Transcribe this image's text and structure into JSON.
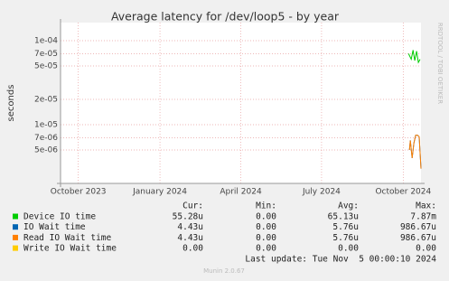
{
  "chart_data": {
    "type": "line",
    "title": "Average latency for /dev/loop5 - by year",
    "ylabel": "seconds",
    "side_note": "RRDTOOL / TOBI OETIKER",
    "log_y": true,
    "grid": true,
    "ylim": [
      2e-06,
      0.000164
    ],
    "yticks": [
      {
        "value": 0.0001,
        "label": "1e-04"
      },
      {
        "value": 7e-05,
        "label": "7e-05"
      },
      {
        "value": 5e-05,
        "label": "5e-05"
      },
      {
        "value": 2e-05,
        "label": "2e-05"
      },
      {
        "value": 1e-05,
        "label": "1e-05"
      },
      {
        "value": 7e-06,
        "label": "7e-06"
      },
      {
        "value": 5e-06,
        "label": "5e-06"
      }
    ],
    "xlim": [
      "2023-09-11",
      "2024-10-21"
    ],
    "xticks": [
      {
        "value": "2023-10",
        "label": "October 2023"
      },
      {
        "value": "2024-01",
        "label": "January 2024"
      },
      {
        "value": "2024-04",
        "label": "April 2024"
      },
      {
        "value": "2024-07",
        "label": "July 2024"
      },
      {
        "value": "2024-10",
        "label": "October 2024"
      }
    ],
    "legend_headers": [
      "Cur:",
      "Min:",
      "Avg:",
      "Max:"
    ],
    "series": [
      {
        "name": "Device IO time",
        "color": "#00cc00",
        "x": [
          "2024-10-07",
          "2024-10-10",
          "2024-10-12",
          "2024-10-14",
          "2024-10-16",
          "2024-10-18",
          "2024-10-20"
        ],
        "values": [
          7e-05,
          6e-05,
          7.7e-05,
          5.8e-05,
          7.5e-05,
          5.5e-05,
          6e-05
        ],
        "stats": [
          "55.28u",
          "0.00",
          "65.13u",
          "7.87m"
        ]
      },
      {
        "name": "IO Wait time",
        "color": "#0066b3",
        "x": [
          "2024-10-08",
          "2024-10-09",
          "2024-10-11",
          "2024-10-13",
          "2024-10-15",
          "2024-10-17",
          "2024-10-19",
          "2024-10-21"
        ],
        "values": [
          5e-06,
          6.5e-06,
          4e-06,
          6e-06,
          7.5e-06,
          7.5e-06,
          7.2e-06,
          3e-06
        ],
        "stats": [
          "4.43u",
          "0.00",
          "5.76u",
          "986.67u"
        ]
      },
      {
        "name": "Read IO Wait time",
        "color": "#ff8000",
        "x": [
          "2024-10-08",
          "2024-10-09",
          "2024-10-11",
          "2024-10-13",
          "2024-10-15",
          "2024-10-17",
          "2024-10-19",
          "2024-10-21"
        ],
        "values": [
          5e-06,
          6.5e-06,
          4e-06,
          6e-06,
          7.5e-06,
          7.5e-06,
          7.2e-06,
          3e-06
        ],
        "stats": [
          "4.43u",
          "0.00",
          "5.76u",
          "986.67u"
        ]
      },
      {
        "name": "Write IO Wait time",
        "color": "#ffcc00",
        "x": [],
        "values": [],
        "stats": [
          "0.00",
          "0.00",
          "0.00",
          "0.00"
        ]
      }
    ],
    "last_update": "Last update: Tue Nov  5 00:00:10 2024",
    "footer": "Munin 2.0.67"
  }
}
